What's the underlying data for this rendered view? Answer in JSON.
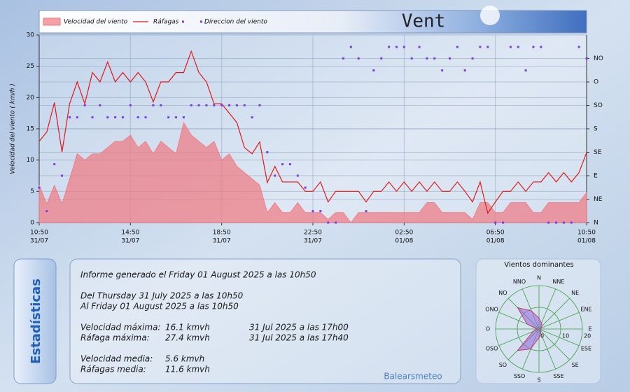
{
  "chart_data": [
    {
      "type": "line",
      "title": "Vent",
      "ylabel": "Velocidad del viento ( km/h )",
      "x": [
        0,
        20,
        40,
        60,
        80,
        100,
        120,
        140,
        160,
        180,
        200,
        220,
        240,
        260,
        280,
        300,
        320,
        340,
        360,
        380,
        400,
        420,
        440,
        460,
        480,
        500,
        520,
        540,
        560,
        580,
        600,
        620,
        640,
        660,
        680,
        700,
        720,
        740,
        760,
        780,
        800,
        820,
        840,
        860,
        880,
        900,
        920,
        940,
        960,
        980,
        1000,
        1020,
        1040,
        1060,
        1080,
        1100,
        1120,
        1140,
        1160,
        1180,
        1200,
        1220,
        1240,
        1260,
        1280,
        1300,
        1320,
        1340,
        1360,
        1380,
        1400,
        1420,
        1440
      ],
      "xlim": [
        0,
        1440
      ],
      "xticks": [
        {
          "value": 0,
          "label": "10:50",
          "date": "31/07"
        },
        {
          "value": 240,
          "label": "14:50",
          "date": "31/07"
        },
        {
          "value": 480,
          "label": "18:50",
          "date": "31/07"
        },
        {
          "value": 720,
          "label": "22:50",
          "date": "31/07"
        },
        {
          "value": 960,
          "label": "02:50",
          "date": "01/08"
        },
        {
          "value": 1200,
          "label": "06:50",
          "date": "01/08"
        },
        {
          "value": 1440,
          "label": "10:50",
          "date": "01/08"
        }
      ],
      "ylim": [
        0,
        30
      ],
      "yticks": [
        0,
        5,
        10,
        15,
        20,
        25,
        30
      ],
      "y2lim": [
        0,
        360
      ],
      "y2ticks": [
        {
          "value": 0,
          "label": "N"
        },
        {
          "value": 45,
          "label": "NE"
        },
        {
          "value": 90,
          "label": "E"
        },
        {
          "value": 135,
          "label": "SE"
        },
        {
          "value": 180,
          "label": "S"
        },
        {
          "value": 225,
          "label": "SO"
        },
        {
          "value": 270,
          "label": "O"
        },
        {
          "value": 315,
          "label": "NO"
        }
      ],
      "grid": true,
      "series": [
        {
          "name": "Velocidad del viento",
          "type": "area",
          "color": "#f07880",
          "values": [
            6,
            3,
            6,
            3,
            7,
            11,
            10,
            11,
            11,
            12,
            13,
            13,
            14,
            12,
            13,
            11,
            13,
            12,
            11,
            16,
            14,
            13,
            12,
            13,
            10,
            11,
            9,
            8,
            7,
            6,
            1.6,
            3.2,
            1.6,
            1.6,
            3.2,
            1.6,
            1.6,
            1.6,
            0.5,
            1.6,
            1.6,
            0,
            1.6,
            1.6,
            1.6,
            1.6,
            1.6,
            1.6,
            1.6,
            1.6,
            1.6,
            3.2,
            3.2,
            1.6,
            1.6,
            1.6,
            1.6,
            0.5,
            3.2,
            3.2,
            1.6,
            1.6,
            3.2,
            3.2,
            3.2,
            1.6,
            1.6,
            3.2,
            3.2,
            3.2,
            3.2,
            3.2,
            4.8
          ]
        },
        {
          "name": "Ráfagas",
          "type": "line",
          "color": "#e01818",
          "values": [
            13,
            14.5,
            19.2,
            11.3,
            19,
            22.5,
            19,
            24,
            22.5,
            25.7,
            22.5,
            24,
            22.5,
            24,
            22.5,
            19.3,
            22.5,
            22.5,
            24,
            24,
            27.4,
            24,
            22.5,
            19,
            19,
            17.5,
            16,
            12,
            11,
            12.9,
            6.4,
            9,
            6.5,
            6.5,
            6.5,
            5,
            5,
            6.5,
            3.3,
            5,
            5,
            5,
            5,
            3.3,
            5,
            5,
            6.5,
            5,
            6.5,
            5,
            6.5,
            5,
            6.5,
            5,
            5,
            6.5,
            5,
            3.3,
            6.5,
            1.5,
            3.3,
            5,
            5,
            6.5,
            5,
            6.5,
            6.5,
            8,
            6.5,
            8,
            6.5,
            8,
            11.2
          ]
        },
        {
          "name": "Direccion del viento",
          "type": "scatter",
          "color": "#7a3cf0",
          "axis": "y2",
          "values": [
            67,
            22,
            112,
            90,
            202,
            202,
            225,
            202,
            225,
            202,
            202,
            202,
            225,
            202,
            202,
            225,
            225,
            202,
            202,
            202,
            225,
            225,
            225,
            225,
            225,
            225,
            225,
            225,
            202,
            225,
            135,
            90,
            112,
            112,
            90,
            67,
            22,
            22,
            0,
            0,
            315,
            337,
            315,
            22,
            292,
            315,
            337,
            337,
            337,
            315,
            337,
            315,
            315,
            292,
            315,
            337,
            292,
            315,
            337,
            337,
            0,
            0,
            337,
            337,
            292,
            337,
            337,
            0,
            0,
            0,
            0,
            337,
            315
          ]
        }
      ]
    },
    {
      "type": "polar",
      "title": "Vientos dominantes",
      "categories": [
        "N",
        "NNE",
        "NE",
        "ENE",
        "E",
        "ESE",
        "SE",
        "SSE",
        "S",
        "SSO",
        "SO",
        "OSO",
        "O",
        "ONO",
        "NO",
        "NNO"
      ],
      "values": [
        5,
        3,
        2,
        1,
        1,
        1,
        1,
        2,
        4,
        10,
        14,
        3,
        1,
        6,
        14,
        9
      ],
      "color": "#9a6ee0",
      "rlim": [
        0,
        20
      ],
      "rticks": [
        0,
        10,
        20
      ]
    }
  ],
  "stats": {
    "heading": "Estadísticas",
    "report": "Informe generado el Friday 01 August 2025 a las 10h50",
    "from": "Del Thursday 31 July 2025 a las 10h50",
    "to": "Al Friday 01 August 2025 a las 10h50",
    "rows": [
      [
        "Velocidad máxima:",
        "16.1 kmvh",
        "31 Jul 2025 a las 17h00"
      ],
      [
        "Ráfaga máxima:",
        "27.4 kmvh",
        "31 Jul 2025 a las 17h40"
      ],
      [
        "Velocidad media:",
        "5.6 kmvh"
      ],
      [
        "Ráfagas media:",
        "11.6 kmvh"
      ]
    ],
    "credit": "Balearsmeteo"
  }
}
